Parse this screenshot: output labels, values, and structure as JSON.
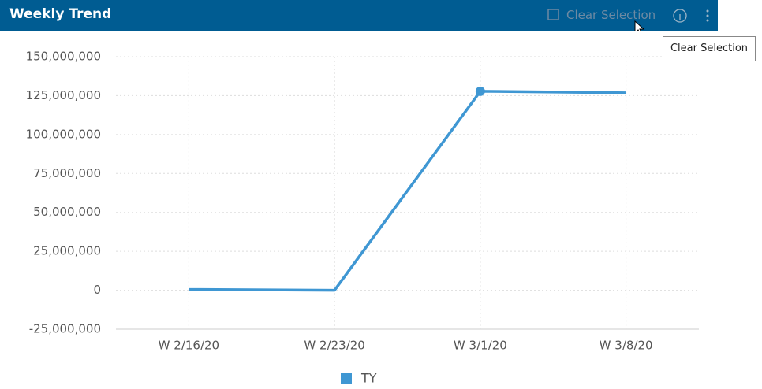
{
  "header": {
    "title": "Weekly Trend",
    "clear_selection": "Clear Selection"
  },
  "tooltip": "Clear Selection",
  "chart_data": {
    "type": "line",
    "categories": [
      "W 2/16/20",
      "W 2/23/20",
      "W 3/1/20",
      "W 3/8/20"
    ],
    "series": [
      {
        "name": "TY",
        "color": "#3f97d3",
        "values": [
          500000,
          0,
          127800000,
          126800000
        ]
      }
    ],
    "selected_index": 2,
    "ylim": [
      -25000000,
      150000000
    ],
    "yticks": [
      {
        "value": -25000000,
        "label": "-25,000,000"
      },
      0,
      {
        "value": 25000000,
        "label": "25,000,000"
      },
      {
        "value": 50000000,
        "label": "50,000,000"
      },
      {
        "value": 75000000,
        "label": "75,000,000"
      },
      {
        "value": 100000000,
        "label": "100,000,000"
      },
      {
        "value": 125000000,
        "label": "125,000,000"
      },
      {
        "value": 150000000,
        "label": "150,000,000"
      }
    ],
    "grid": true,
    "legend": "bottom"
  }
}
